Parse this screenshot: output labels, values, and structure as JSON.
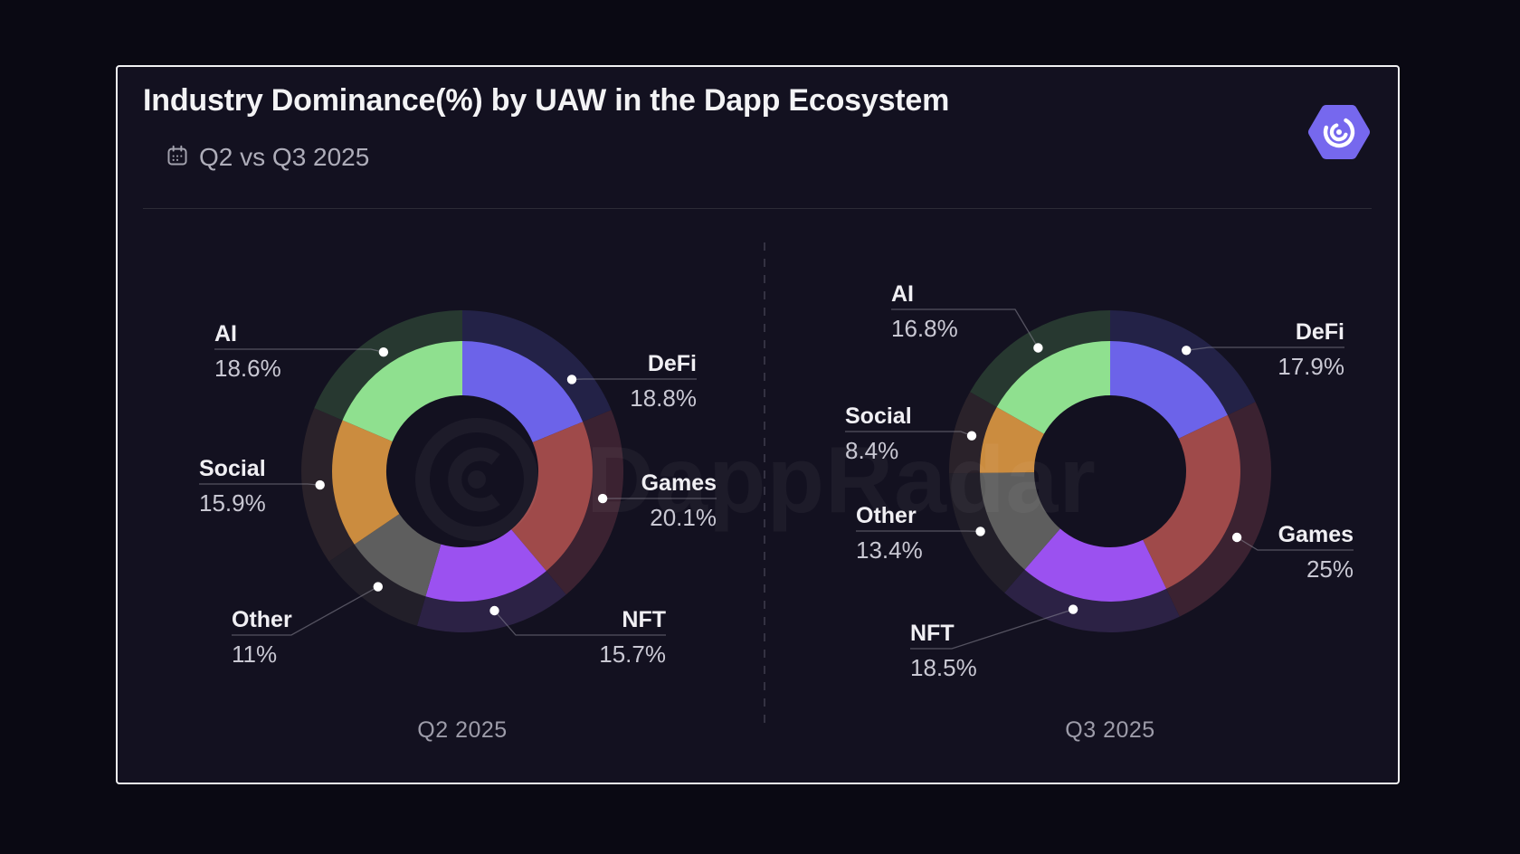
{
  "header": {
    "title": "Industry Dominance(%) by UAW in the Dapp Ecosystem",
    "subtitle": "Q2 vs Q3 2025",
    "calendar_icon": "calendar-icon",
    "logo_icon": "dappradar-logo"
  },
  "watermark": {
    "text": "DappRadar"
  },
  "chart_data": [
    {
      "type": "pie",
      "variant": "donut",
      "title": "Q2 2025",
      "unit": "%",
      "clockwise_from_top": true,
      "labels": [
        "DeFi",
        "Games",
        "NFT",
        "Other",
        "Social",
        "AI"
      ],
      "values": [
        18.8,
        20.1,
        15.7,
        11,
        15.9,
        18.6
      ],
      "display": [
        "18.8%",
        "20.1%",
        "15.7%",
        "11%",
        "15.9%",
        "18.6%"
      ]
    },
    {
      "type": "pie",
      "variant": "donut",
      "title": "Q3 2025",
      "unit": "%",
      "clockwise_from_top": true,
      "labels": [
        "DeFi",
        "Games",
        "NFT",
        "Other",
        "Social",
        "AI"
      ],
      "values": [
        17.9,
        25,
        18.5,
        13.4,
        8.4,
        16.8
      ],
      "display": [
        "17.9%",
        "25%",
        "18.5%",
        "13.4%",
        "8.4%",
        "16.8%"
      ]
    }
  ],
  "theme": {
    "page_bg": "#0A0913",
    "card_bg": "#131120",
    "card_border": "#F1F1F3",
    "title_color": "#F3F3F5",
    "subtitle_color": "#AEADB9",
    "separator_color": "#2C2B36",
    "segment_colors": [
      "#6C63E9",
      "#9F4A4A",
      "#9B51F0",
      "#5E5E5E",
      "#CB8C3F",
      "#8FE08F"
    ],
    "segment_halo_colors": [
      "#232247",
      "#3B2231",
      "#2C2245",
      "#221F29",
      "#2A222A",
      "#273830"
    ],
    "label_color": "#F0EFF3",
    "pct_color": "#C9C8D3",
    "leader_color": "#8A8995",
    "dot_color": "#FFFFFF",
    "footer_color": "#9D9CA9",
    "divider_color": "#4E4C5C",
    "logo_purple": "#7668EE"
  }
}
